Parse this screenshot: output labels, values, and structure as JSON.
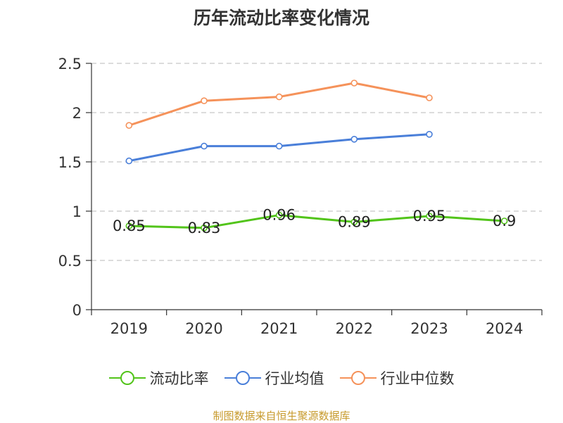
{
  "chart_data": {
    "type": "line",
    "title": "历年流动比率变化情况",
    "categories": [
      "2019",
      "2020",
      "2021",
      "2022",
      "2023",
      "2024"
    ],
    "ylim": [
      0,
      2.5
    ],
    "yticks": [
      "0",
      "0.5",
      "1",
      "1.5",
      "2",
      "2.5"
    ],
    "grid": true,
    "legend_position": "bottom",
    "series": [
      {
        "name": "流动比率",
        "color": "#52c41a",
        "values": [
          0.85,
          0.83,
          0.96,
          0.89,
          0.95,
          0.9
        ],
        "data_labels": [
          "0.85",
          "0.83",
          "0.96",
          "0.89",
          "0.95",
          "0.9"
        ]
      },
      {
        "name": "行业均值",
        "color": "#4a7fd9",
        "values": [
          1.51,
          1.66,
          1.66,
          1.73,
          1.78,
          null
        ]
      },
      {
        "name": "行业中位数",
        "color": "#f5925a",
        "values": [
          1.87,
          2.12,
          2.16,
          2.3,
          2.15,
          null
        ]
      }
    ]
  },
  "footer": {
    "source": "制图数据来自恒生聚源数据库"
  }
}
